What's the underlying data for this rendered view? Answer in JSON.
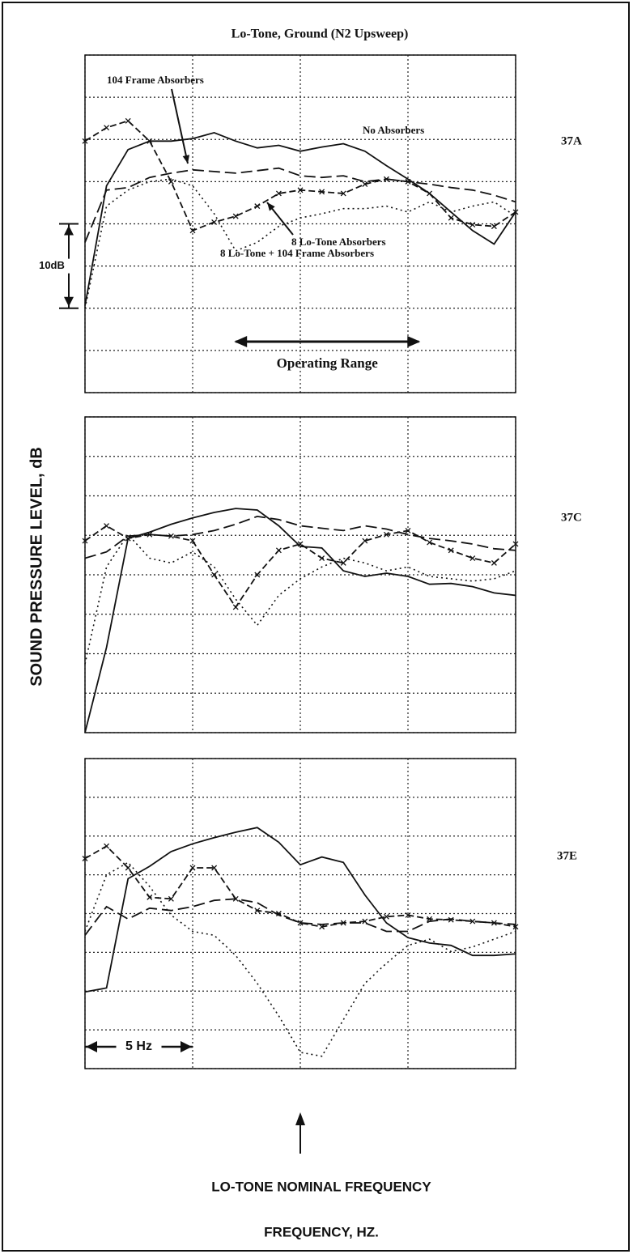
{
  "figure": {
    "title": "Lo-Tone, Ground (N2 Upsweep)",
    "y_label": "SOUND PRESSURE LEVEL, dB",
    "x_label": "FREQUENCY, HZ.",
    "nominal_label": "LO-TONE NOMINAL FREQUENCY",
    "nominal_x": 10,
    "span_label": "5 Hz",
    "span": [
      0,
      5
    ],
    "scale_label": "10dB",
    "scale": [
      10,
      20
    ],
    "range_label": "Operating Range",
    "range": [
      7,
      15.5
    ]
  },
  "chart_data": [
    {
      "type": "line",
      "label": "37A",
      "xlim": [
        0,
        20
      ],
      "ylim": [
        0,
        40
      ],
      "xticks": [
        0,
        5,
        10,
        15,
        20
      ],
      "yticks": [
        0,
        5,
        10,
        15,
        20,
        25,
        30,
        35,
        40
      ],
      "grid": true,
      "x": [
        0,
        1,
        2,
        3,
        4,
        5,
        6,
        7,
        8,
        9,
        10,
        11,
        12,
        13,
        14,
        15,
        16,
        17,
        18,
        19,
        20
      ],
      "series": [
        {
          "name": "No Absorbers",
          "color": "#111",
          "style": "solid",
          "values": [
            10.3,
            24.5,
            28.8,
            29.8,
            29.8,
            30.1,
            30.8,
            29.8,
            29,
            29.3,
            28.6,
            29.1,
            29.5,
            28.6,
            26.9,
            25.3,
            23.6,
            21.4,
            19.2,
            17.6,
            21.4
          ]
        },
        {
          "name": "104 Frame Absorbers",
          "color": "#111",
          "style": "dashed",
          "values": [
            17.8,
            24,
            24.3,
            25.5,
            26,
            26.4,
            26.2,
            26,
            26.3,
            26.6,
            25.7,
            25.5,
            25.7,
            25,
            25.3,
            25,
            24.7,
            24.3,
            24,
            23.4,
            22.6
          ]
        },
        {
          "name": "8 Lo-Tone Absorbers",
          "color": "#111",
          "style": "dashed-x",
          "values": [
            29.8,
            31.4,
            32.2,
            29.8,
            25,
            19.2,
            20.2,
            20.9,
            22.1,
            23.6,
            24,
            23.8,
            23.6,
            24.7,
            25.3,
            25,
            23.6,
            20.7,
            19.9,
            19.7,
            21.4
          ]
        },
        {
          "name": "8 Lo-Tone + 104 Frame Absorbers",
          "color": "#111",
          "style": "dotted",
          "values": [
            10,
            22.1,
            24,
            25,
            25.3,
            24.5,
            21.2,
            16.8,
            17.8,
            19.7,
            20.7,
            21.2,
            21.8,
            21.8,
            22.1,
            21.4,
            22.6,
            21.4,
            22.1,
            22.6,
            20.9
          ]
        }
      ]
    },
    {
      "type": "line",
      "label": "37C",
      "xlim": [
        0,
        20
      ],
      "ylim": [
        0,
        40
      ],
      "xticks": [
        0,
        5,
        10,
        15,
        20
      ],
      "yticks": [
        0,
        5,
        10,
        15,
        20,
        25,
        30,
        35,
        40
      ],
      "grid": true,
      "x": [
        0,
        1,
        2,
        3,
        4,
        5,
        6,
        7,
        8,
        9,
        10,
        11,
        12,
        13,
        14,
        15,
        16,
        17,
        18,
        19,
        20
      ],
      "series": [
        {
          "color": "#111",
          "style": "solid",
          "values": [
            0,
            10.8,
            24.6,
            25.4,
            26.4,
            27.2,
            27.9,
            28.4,
            28.2,
            26.2,
            23.6,
            23.4,
            20.5,
            19.8,
            20.2,
            19.8,
            18.8,
            18.9,
            18.5,
            17.7,
            17.4
          ]
        },
        {
          "color": "#111",
          "style": "dashed",
          "values": [
            22.1,
            22.9,
            24.9,
            25.1,
            24.9,
            25.1,
            25.6,
            26.4,
            27.4,
            27,
            26.2,
            25.9,
            25.6,
            26.2,
            25.8,
            25.1,
            24.6,
            24.3,
            23.9,
            23.3,
            23.1
          ]
        },
        {
          "color": "#111",
          "style": "dashed-x",
          "values": [
            24.3,
            26.2,
            24.6,
            25.1,
            24.9,
            24.3,
            20,
            15.9,
            20,
            23.1,
            23.9,
            22.1,
            21.5,
            24.3,
            25.1,
            25.6,
            24.1,
            23.1,
            22.1,
            21.5,
            23.9
          ]
        },
        {
          "color": "#111",
          "style": "dotted",
          "values": [
            8.7,
            21,
            25.1,
            22.1,
            21.5,
            22.9,
            21,
            16.9,
            13.6,
            17.4,
            19.5,
            21,
            22.1,
            21.5,
            20.5,
            21,
            19.8,
            19.5,
            19.2,
            19.5,
            20.5
          ]
        }
      ]
    },
    {
      "type": "line",
      "label": "37E",
      "xlim": [
        0,
        20
      ],
      "ylim": [
        0,
        40
      ],
      "xticks": [
        0,
        5,
        10,
        15,
        20
      ],
      "yticks": [
        0,
        5,
        10,
        15,
        20,
        25,
        30,
        35,
        40
      ],
      "grid": true,
      "x": [
        0,
        1,
        2,
        3,
        4,
        5,
        6,
        7,
        8,
        9,
        10,
        11,
        12,
        13,
        14,
        15,
        16,
        17,
        18,
        19,
        20
      ],
      "series": [
        {
          "color": "#111",
          "style": "solid",
          "values": [
            9.9,
            10.4,
            24.5,
            26.1,
            28,
            29,
            29.8,
            30.5,
            31.1,
            29.2,
            26.3,
            27.3,
            26.6,
            22.4,
            18.8,
            16.9,
            16.2,
            15.9,
            14.6,
            14.6,
            14.8
          ]
        },
        {
          "color": "#111",
          "style": "dashed",
          "values": [
            17.2,
            20.9,
            19.3,
            20.7,
            20.4,
            20.9,
            21.7,
            21.9,
            21.4,
            19.8,
            18.8,
            18.6,
            18.8,
            18.8,
            17.7,
            17.7,
            19,
            19.3,
            19,
            18.8,
            18.6
          ]
        },
        {
          "color": "#111",
          "style": "dashed-x",
          "values": [
            27.1,
            28.7,
            25.9,
            22.1,
            21.9,
            25.9,
            25.9,
            21.9,
            20.4,
            20,
            18.8,
            18.3,
            18.8,
            19,
            19.6,
            19.8,
            19.3,
            19.2,
            19,
            18.8,
            18.3
          ]
        },
        {
          "color": "#111",
          "style": "dotted",
          "values": [
            17.7,
            25,
            26.6,
            23.5,
            19.8,
            17.7,
            17.2,
            14.6,
            11,
            6.8,
            2.1,
            1.6,
            6.3,
            11,
            13.6,
            15.9,
            16.7,
            15.1,
            15.7,
            16.7,
            17.7
          ]
        }
      ]
    }
  ]
}
